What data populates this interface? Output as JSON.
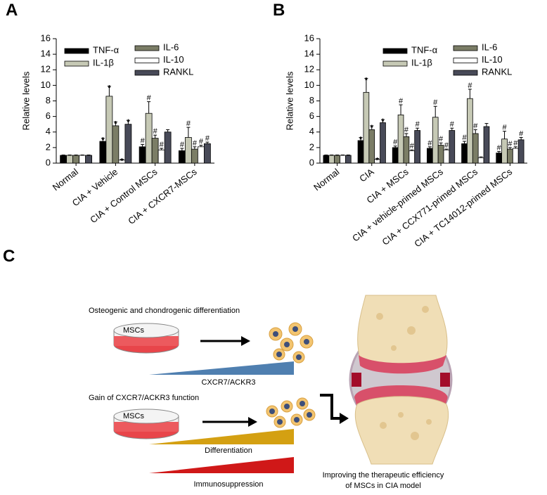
{
  "panels": [
    "A",
    "B",
    "C"
  ],
  "chart_data": [
    {
      "type": "bar",
      "ylabel": "Relative levels",
      "ylim": [
        0,
        16
      ],
      "yticks": [
        0,
        2,
        4,
        6,
        8,
        10,
        12,
        14,
        16
      ],
      "categories": [
        "Normal",
        "CIA + Vehicle",
        "CIA + Control MSCs",
        "CIA + CXCR7-MSCs"
      ],
      "series": [
        {
          "name": "TNF-α",
          "color": "#000000",
          "values": [
            1,
            2.8,
            2.1,
            1.6
          ],
          "errors": [
            0.05,
            0.4,
            0.3,
            0.3
          ],
          "annotations": [
            null,
            "*",
            "#",
            "#"
          ]
        },
        {
          "name": "IL-1β",
          "color": "#c6c9b5",
          "values": [
            1,
            8.6,
            6.4,
            3.3
          ],
          "errors": [
            0.05,
            1.3,
            1.5,
            1.3
          ],
          "annotations": [
            null,
            "*",
            "#",
            "#"
          ]
        },
        {
          "name": "IL-6",
          "color": "#7b7d66",
          "values": [
            1,
            4.8,
            3.2,
            1.8
          ],
          "errors": [
            0.05,
            0.5,
            0.4,
            0.3
          ],
          "annotations": [
            null,
            "*",
            "#",
            "#"
          ]
        },
        {
          "name": "IL-10",
          "color": "#ffffff",
          "values": [
            1,
            0.4,
            1.7,
            2.1
          ],
          "errors": [
            0.05,
            0.1,
            0.2,
            0.2
          ],
          "annotations": [
            null,
            "*",
            "#",
            "#"
          ]
        },
        {
          "name": "RANKL",
          "color": "#484a58",
          "values": [
            1,
            5.0,
            4.0,
            2.5
          ],
          "errors": [
            0.05,
            0.5,
            0.3,
            0.2
          ],
          "annotations": [
            null,
            "*",
            null,
            "#"
          ]
        }
      ]
    },
    {
      "type": "bar",
      "ylabel": "Relative levels",
      "ylim": [
        0,
        16
      ],
      "yticks": [
        0,
        2,
        4,
        6,
        8,
        10,
        12,
        14,
        16
      ],
      "categories": [
        "Normal",
        "CIA",
        "CIA + MSCs",
        "CIA + vehicle-primed MSCs",
        "CIA + CCX771-primed MSCs",
        "CIA + TC14012-primed MSCs"
      ],
      "series": [
        {
          "name": "TNF-α",
          "color": "#000000",
          "values": [
            1,
            2.9,
            2.0,
            1.9,
            2.5,
            1.3
          ],
          "errors": [
            0.05,
            0.4,
            0.2,
            0.2,
            0.3,
            0.2
          ],
          "annotations": [
            null,
            "*",
            "#",
            "#",
            "#",
            "#"
          ]
        },
        {
          "name": "IL-1β",
          "color": "#c6c9b5",
          "values": [
            1,
            9.1,
            6.2,
            5.9,
            8.3,
            3.1
          ],
          "errors": [
            0.05,
            1.8,
            1.3,
            1.4,
            1.2,
            1.0
          ],
          "annotations": [
            null,
            "*",
            "#",
            "#",
            "#",
            "#"
          ]
        },
        {
          "name": "IL-6",
          "color": "#7b7d66",
          "values": [
            1,
            4.3,
            3.4,
            2.3,
            3.8,
            1.8
          ],
          "errors": [
            0.05,
            0.5,
            0.4,
            0.3,
            0.5,
            0.2
          ],
          "annotations": [
            null,
            "*",
            "#",
            "#",
            "#",
            "#"
          ]
        },
        {
          "name": "IL-10",
          "color": "#ffffff",
          "values": [
            1,
            0.5,
            1.6,
            1.7,
            0.7,
            1.9
          ],
          "errors": [
            0.05,
            0.1,
            0.1,
            0.1,
            0.1,
            0.2
          ],
          "annotations": [
            null,
            "*",
            "#",
            "#",
            null,
            "#"
          ]
        },
        {
          "name": "RANKL",
          "color": "#484a58",
          "values": [
            1,
            5.2,
            4.2,
            4.2,
            4.7,
            3.0
          ],
          "errors": [
            0.05,
            0.4,
            0.3,
            0.3,
            0.4,
            0.3
          ],
          "annotations": [
            null,
            "*",
            "#",
            "#",
            null,
            "#"
          ]
        }
      ]
    }
  ],
  "diagram": {
    "top_label": "Osteogenic and chondrogenic differentiation",
    "dish_1": "MSCs",
    "ramp_1": "CXCR7/ACKR3",
    "middle_label": "Gain of CXCR7/ACKR3 function",
    "dish_2": "MSCs",
    "ramp_2": "Differentiation",
    "ramp_3": "Immunosuppression",
    "outcome": [
      "Improving  the therapeutic efficiency",
      "of MSCs in CIA model"
    ]
  }
}
